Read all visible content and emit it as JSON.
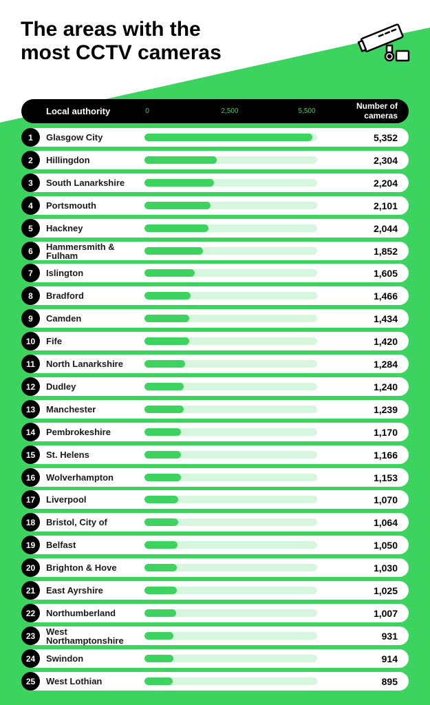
{
  "title_lines": [
    "The areas with the",
    "most CCTV cameras"
  ],
  "colors": {
    "accent": "#3dd35f",
    "track": "#d7f6de",
    "header": "#000000"
  },
  "icon": "cctv-camera-icon",
  "chart_data": {
    "type": "bar",
    "orientation": "horizontal",
    "title": "The areas with the most CCTV cameras",
    "xlabel": "Local authority",
    "ylabel": "Number of cameras",
    "ticks": [
      "0",
      "2,500",
      "5,500"
    ],
    "range": [
      0,
      5500
    ],
    "categories": [
      "Glasgow City",
      "Hillingdon",
      "South Lanarkshire",
      "Portsmouth",
      "Hackney",
      "Hammersmith & Fulham",
      "Islington",
      "Bradford",
      "Camden",
      "Fife",
      "North Lanarkshire",
      "Dudley",
      "Manchester",
      "Pembrokeshire",
      "St. Helens",
      "Wolverhampton",
      "Liverpool",
      "Bristol, City of",
      "Belfast",
      "Brighton & Hove",
      "East Ayrshire",
      "Northumberland",
      "West Northamptonshire",
      "Swindon",
      "West Lothian"
    ],
    "values": [
      5352,
      2304,
      2204,
      2101,
      2044,
      1852,
      1605,
      1466,
      1434,
      1420,
      1284,
      1240,
      1239,
      1170,
      1166,
      1153,
      1070,
      1064,
      1050,
      1030,
      1025,
      1007,
      931,
      914,
      895
    ],
    "value_labels": [
      "5,352",
      "2,304",
      "2,204",
      "2,101",
      "2,044",
      "1,852",
      "1,605",
      "1,466",
      "1,434",
      "1,420",
      "1,284",
      "1,240",
      "1,239",
      "1,170",
      "1,166",
      "1,153",
      "1,070",
      "1,064",
      "1,050",
      "1,030",
      "1,025",
      "1,007",
      "931",
      "914",
      "895"
    ],
    "ranks": [
      "1",
      "2",
      "3",
      "4",
      "5",
      "6",
      "7",
      "8",
      "9",
      "10",
      "11",
      "12",
      "13",
      "14",
      "15",
      "16",
      "17",
      "18",
      "19",
      "20",
      "21",
      "22",
      "23",
      "24",
      "25"
    ],
    "grid": false
  }
}
